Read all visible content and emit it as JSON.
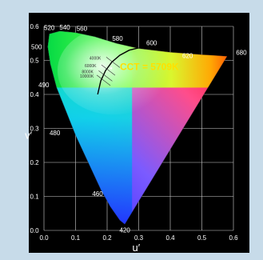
{
  "chart_data": {
    "type": "diagram",
    "title": "",
    "xlabel": "u′",
    "ylabel": "v′",
    "xlim": [
      0,
      0.6
    ],
    "ylim": [
      0,
      0.6
    ],
    "x_ticks": [
      "0.0",
      "0.1",
      "0.2",
      "0.3",
      "0.4",
      "0.5",
      "0.6"
    ],
    "y_ticks": [
      "0.0",
      "0.1",
      "0.2",
      "0.3",
      "0.4",
      "0.5",
      "0.6"
    ],
    "grid": true,
    "wavelength_labels": [
      {
        "label": "420",
        "u": 0.256,
        "v": 0.018
      },
      {
        "label": "460",
        "u": 0.19,
        "v": 0.108
      },
      {
        "label": "480",
        "u": 0.07,
        "v": 0.287
      },
      {
        "label": "490",
        "u": 0.03,
        "v": 0.428
      },
      {
        "label": "500",
        "u": 0.012,
        "v": 0.54
      },
      {
        "label": "520",
        "u": 0.017,
        "v": 0.582
      },
      {
        "label": "540",
        "u": 0.066,
        "v": 0.584
      },
      {
        "label": "560",
        "u": 0.12,
        "v": 0.58
      },
      {
        "label": "580",
        "u": 0.233,
        "v": 0.548
      },
      {
        "label": "600",
        "u": 0.341,
        "v": 0.535
      },
      {
        "label": "620",
        "u": 0.455,
        "v": 0.514
      },
      {
        "label": "680",
        "u": 0.615,
        "v": 0.512
      }
    ],
    "spectral_locus": [
      {
        "u": 0.256,
        "v": 0.018
      },
      {
        "u": 0.24,
        "v": 0.03
      },
      {
        "u": 0.21,
        "v": 0.07
      },
      {
        "u": 0.18,
        "v": 0.12
      },
      {
        "u": 0.14,
        "v": 0.2
      },
      {
        "u": 0.1,
        "v": 0.28
      },
      {
        "u": 0.07,
        "v": 0.35
      },
      {
        "u": 0.04,
        "v": 0.42
      },
      {
        "u": 0.02,
        "v": 0.49
      },
      {
        "u": 0.012,
        "v": 0.54
      },
      {
        "u": 0.017,
        "v": 0.578
      },
      {
        "u": 0.05,
        "v": 0.586
      },
      {
        "u": 0.1,
        "v": 0.582
      },
      {
        "u": 0.16,
        "v": 0.57
      },
      {
        "u": 0.23,
        "v": 0.55
      },
      {
        "u": 0.3,
        "v": 0.535
      },
      {
        "u": 0.4,
        "v": 0.524
      },
      {
        "u": 0.5,
        "v": 0.517
      },
      {
        "u": 0.55,
        "v": 0.514
      },
      {
        "u": 0.58,
        "v": 0.512
      }
    ],
    "planckian_locus": [
      {
        "u": 0.17,
        "v": 0.4
      },
      {
        "u": 0.18,
        "v": 0.44
      },
      {
        "u": 0.195,
        "v": 0.47
      },
      {
        "u": 0.215,
        "v": 0.495
      },
      {
        "u": 0.24,
        "v": 0.515
      },
      {
        "u": 0.27,
        "v": 0.53
      },
      {
        "u": 0.3,
        "v": 0.537
      }
    ],
    "cct_lines": [
      {
        "label": "4000K",
        "u": 0.22,
        "v": 0.498
      },
      {
        "label": "6000K",
        "u": 0.205,
        "v": 0.475
      },
      {
        "label": "8000K",
        "u": 0.196,
        "v": 0.458
      },
      {
        "label": "10000K",
        "u": 0.19,
        "v": 0.445
      }
    ],
    "annotation": {
      "label": "CCT = 5709K",
      "u": 0.205,
      "v": 0.47
    },
    "colors": {
      "background": "#c7dbe9",
      "plot_background": "#000000",
      "grid": "#cfcfcf",
      "axis_text": "#ffffff",
      "annotation": "#ffe000",
      "locus": "#000000"
    }
  }
}
